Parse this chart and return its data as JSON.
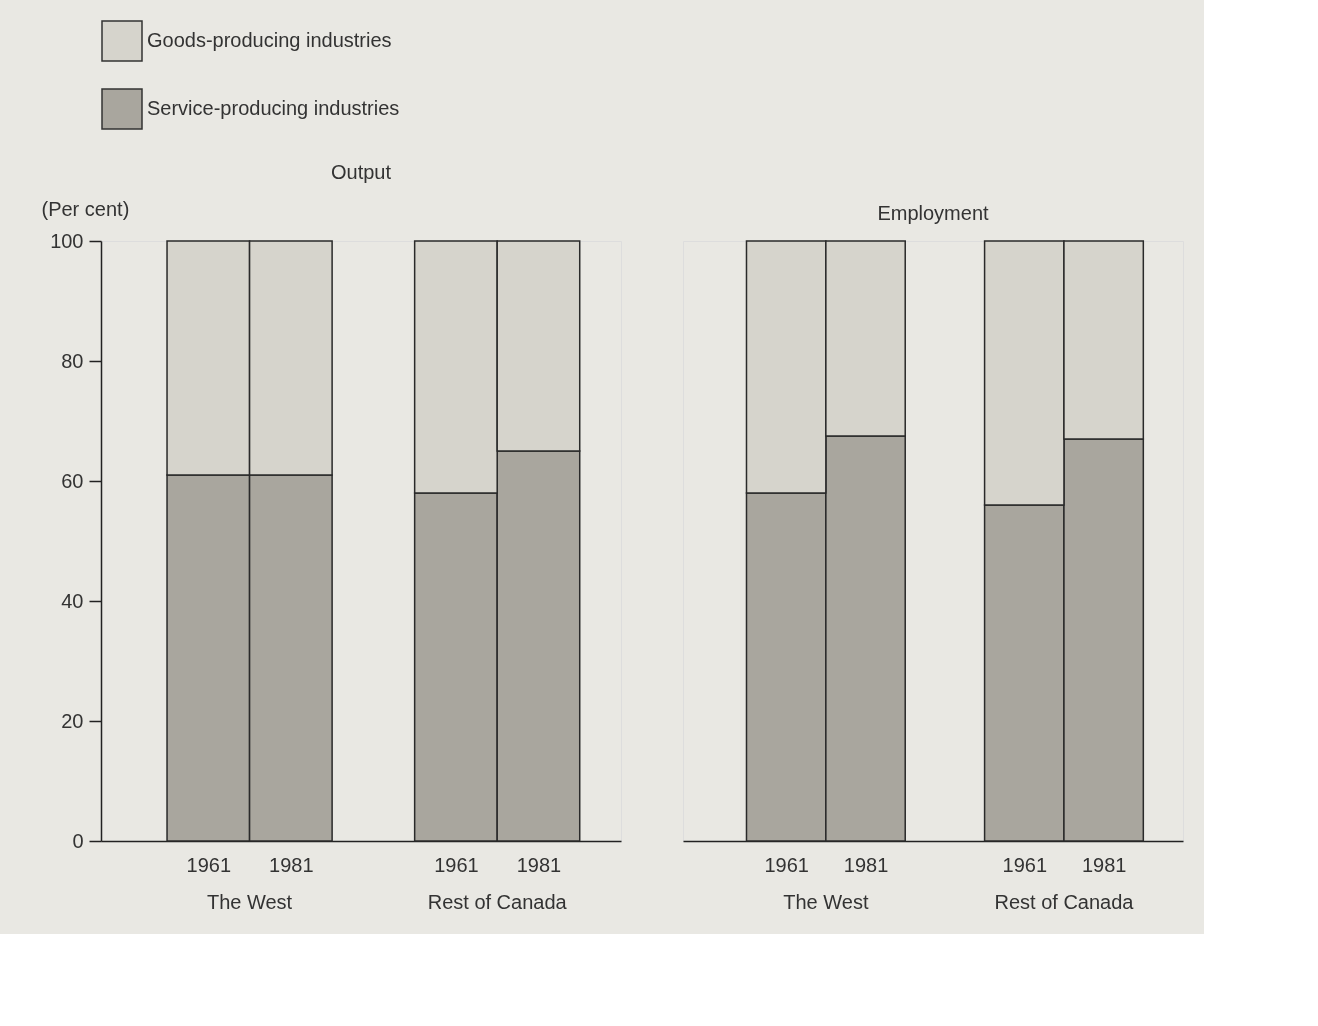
{
  "chart_data": [
    {
      "type": "bar",
      "title": "Output",
      "ylabel": "(Per cent)",
      "categories": [
        "1961",
        "1981",
        "1961",
        "1981"
      ],
      "stacked": true,
      "legend": "top left",
      "grid": false,
      "series": [
        {
          "name": "Service-producing industries",
          "color": "#a9a69e",
          "values": [
            61,
            61,
            58,
            65
          ]
        },
        {
          "name": "Goods-producing industries",
          "color": "#d6d4cc",
          "values": [
            39,
            39,
            42,
            35
          ]
        }
      ],
      "ylim": [
        0,
        100
      ],
      "yticks": [
        0,
        20,
        40,
        60,
        80,
        100
      ],
      "annotations": [
        "The West",
        "Rest of Canada"
      ]
    },
    {
      "type": "bar",
      "title": "Employment",
      "categories": [
        "1961",
        "1981",
        "1961",
        "1981"
      ],
      "stacked": true,
      "grid": false,
      "tick_labels": "x",
      "legend": "top left",
      "series": [
        {
          "name": "Service-producing industries",
          "color": "#a9a69e",
          "values": [
            58,
            67.5,
            56,
            67
          ]
        },
        {
          "name": "Goods-producing industries",
          "color": "#d6d4cc",
          "values": [
            42,
            32.5,
            44,
            33
          ]
        }
      ],
      "ylim": [
        0,
        100
      ],
      "yticks": [
        0,
        20,
        40,
        60,
        80,
        100
      ],
      "annotations": [
        "The West",
        "Rest of Canada"
      ]
    }
  ]
}
